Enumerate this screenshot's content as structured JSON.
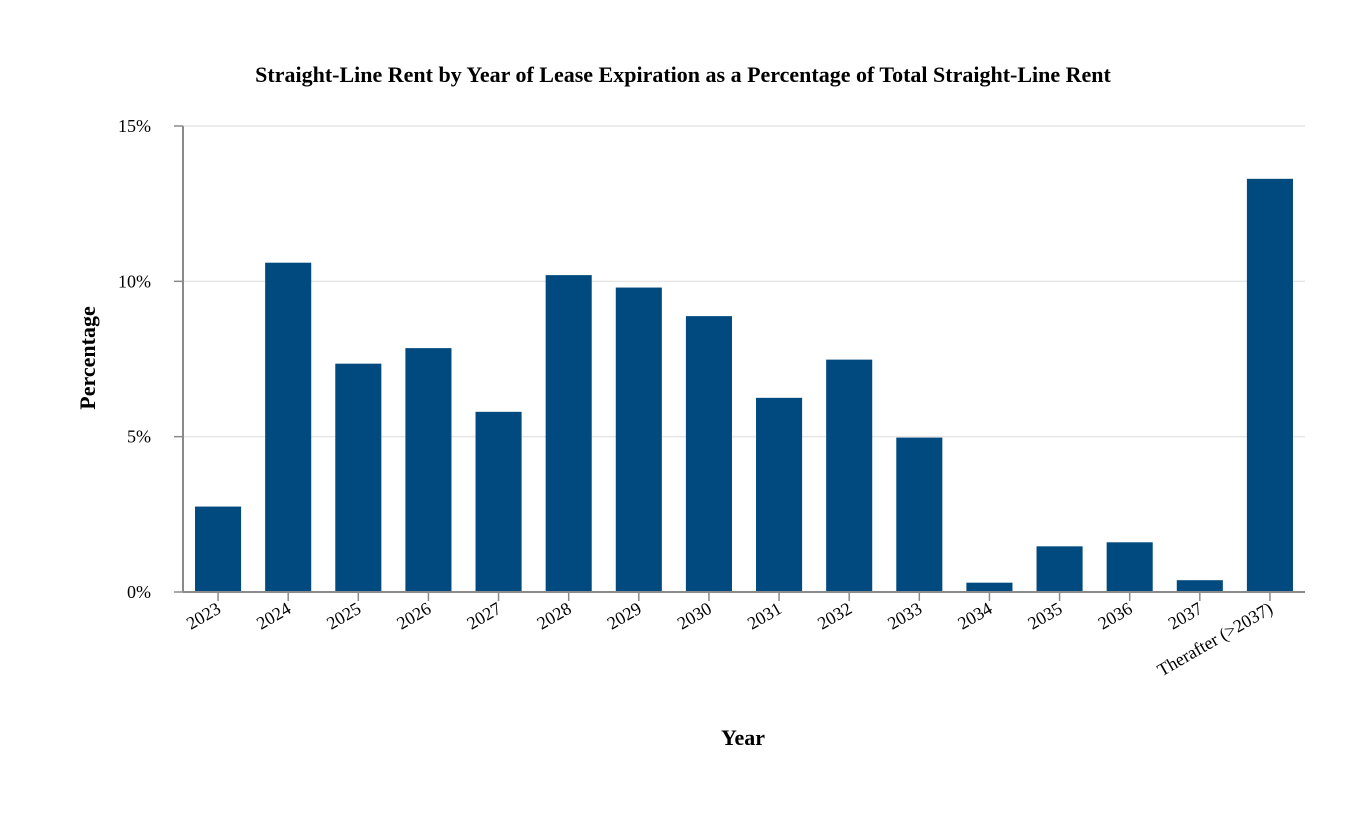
{
  "chart_data": {
    "type": "bar",
    "title": "Straight-Line Rent by Year of Lease Expiration as a Percentage of Total Straight-Line Rent",
    "xlabel": "Year",
    "ylabel": "Percentage",
    "ylim": [
      0,
      15
    ],
    "yticks": [
      0,
      5,
      10,
      15
    ],
    "ytick_labels": [
      "0%",
      "5%",
      "10%",
      "15%"
    ],
    "grid": true,
    "categories": [
      "2023",
      "2024",
      "2025",
      "2026",
      "2027",
      "2028",
      "2029",
      "2030",
      "2031",
      "2032",
      "2033",
      "2034",
      "2035",
      "2036",
      "2037",
      "Therafter (>2037)"
    ],
    "values": [
      2.75,
      10.6,
      7.35,
      7.85,
      5.8,
      10.2,
      9.8,
      8.88,
      6.25,
      7.48,
      4.97,
      0.3,
      1.47,
      1.6,
      0.38,
      13.3
    ],
    "bar_color": "#004a7f"
  }
}
